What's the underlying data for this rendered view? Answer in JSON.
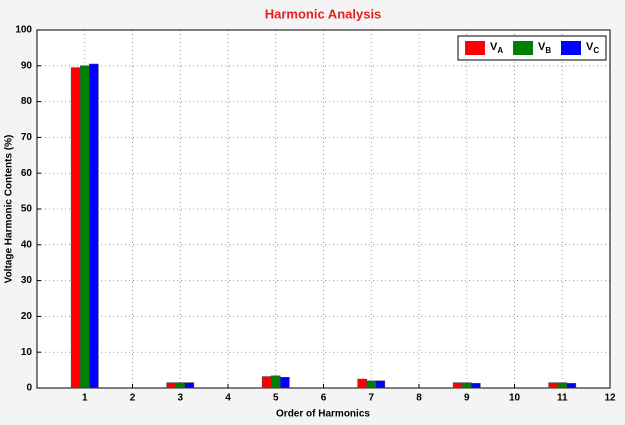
{
  "chart_data": {
    "type": "bar",
    "title": "Harmonic Analysis",
    "x_label": "Order of Harmonics",
    "y_label": "Voltage Harmonic Contents (%)",
    "x": [
      1,
      3,
      5,
      7,
      9,
      11
    ],
    "series": [
      {
        "name": "VA",
        "color": "#ff0000",
        "values": [
          89.5,
          1.5,
          3.2,
          2.5,
          1.5,
          1.5
        ]
      },
      {
        "name": "VB",
        "color": "#008000",
        "values": [
          90,
          1.5,
          3.4,
          2.0,
          1.5,
          1.5
        ]
      },
      {
        "name": "VC",
        "color": "#0000ff",
        "values": [
          90.5,
          1.5,
          3.0,
          2.0,
          1.3,
          1.3
        ]
      }
    ],
    "xlim": [
      0,
      12
    ],
    "xticks": [
      1,
      2,
      3,
      4,
      5,
      6,
      7,
      8,
      9,
      10,
      11,
      12
    ],
    "ylim": [
      0,
      100
    ],
    "yticks": [
      0,
      10,
      20,
      30,
      40,
      50,
      60,
      70,
      80,
      90,
      100
    ],
    "grid": true,
    "legend": "upper right"
  }
}
